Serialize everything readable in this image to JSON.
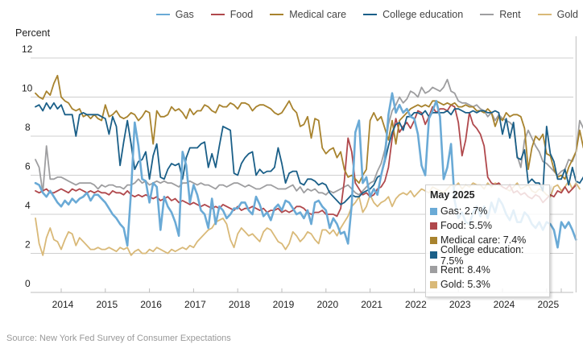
{
  "chart_data": {
    "type": "line",
    "title": "",
    "ylabel": "Percent",
    "xlabel": "",
    "ylim": [
      0,
      12
    ],
    "yticks": [
      0,
      2,
      4,
      6,
      8,
      10,
      12
    ],
    "ytick_labels": [
      "0",
      "2",
      "4",
      "6",
      "8",
      "10",
      "12"
    ],
    "x_start": "2013-06",
    "x_end": "2025-05",
    "x_frequency": "monthly",
    "xticks": [
      "2014",
      "2015",
      "2016",
      "2017",
      "2018",
      "2019",
      "2020",
      "2021",
      "2022",
      "2023",
      "2024",
      "2025"
    ],
    "grid": "horizontal",
    "legend_position": "top-right",
    "series": [
      {
        "name": "Gas",
        "color": "#6aaad6",
        "values": [
          5.6,
          5.5,
          5.1,
          4.9,
          5.2,
          4.9,
          4.6,
          4.4,
          4.7,
          4.5,
          4.8,
          4.6,
          4.8,
          4.9,
          5.1,
          4.7,
          5.0,
          5.0,
          4.8,
          4.6,
          4.3,
          4.0,
          3.8,
          3.5,
          3.3,
          2.4,
          5.2,
          8.7,
          7.5,
          5.8,
          5.7,
          4.6,
          5.6,
          5.4,
          3.2,
          4.9,
          4.4,
          4.1,
          3.6,
          2.9,
          7.2,
          6.5,
          4.6,
          5.5,
          5.0,
          4.2,
          4.0,
          3.3,
          4.8,
          3.5,
          4.4,
          4.2,
          3.8,
          4.0,
          4.3,
          4.3,
          4.6,
          4.6,
          4.2,
          4.0,
          4.9,
          4.5,
          3.9,
          4.1,
          3.7,
          4.3,
          4.5,
          4.2,
          4.7,
          4.6,
          4.3,
          4.0,
          4.1,
          3.8,
          4.2,
          3.5,
          4.6,
          4.7,
          4.4,
          4.2,
          3.3,
          3.8,
          3.5,
          3.0,
          3.1,
          2.5,
          4.5,
          8.2,
          8.8,
          5.6,
          5.9,
          4.9,
          5.3,
          5.0,
          6.0,
          6.8,
          9.1,
          10.2,
          9.2,
          9.6,
          9.2,
          9.4,
          9.0,
          8.9,
          8.1,
          6.5,
          6.0,
          8.9,
          9.3,
          9.8,
          9.0,
          5.8,
          6.4,
          7.6,
          4.7,
          3.8,
          4.1,
          3.6,
          3.5,
          4.1,
          4.4,
          3.9,
          4.4,
          3.8,
          4.6,
          4.1,
          4.8,
          4.5,
          4.0,
          3.7,
          4.2,
          3.6,
          3.6,
          4.1,
          3.9,
          3.5,
          3.3,
          3.6,
          3.2,
          3.6,
          3.5,
          3.2,
          2.3,
          3.6,
          3.3,
          3.6,
          3.2,
          2.7
        ]
      },
      {
        "name": "Food",
        "color": "#b0484c",
        "values": [
          5.2,
          5.1,
          5.2,
          5.3,
          5.1,
          5.1,
          5.2,
          5.3,
          5.2,
          5.1,
          5.3,
          5.2,
          5.3,
          5.2,
          5.1,
          5.2,
          5.1,
          5.2,
          5.1,
          5.1,
          5.0,
          5.2,
          5.1,
          5.1,
          5.0,
          5.2,
          5.0,
          4.9,
          5.0,
          4.9,
          5.0,
          4.9,
          4.8,
          4.9,
          4.7,
          4.8,
          4.9,
          4.7,
          4.8,
          4.6,
          4.7,
          4.6,
          4.5,
          4.6,
          4.5,
          4.4,
          4.5,
          4.4,
          4.3,
          4.4,
          4.3,
          4.5,
          4.4,
          4.3,
          4.2,
          4.4,
          4.2,
          4.3,
          4.3,
          4.4,
          4.3,
          4.2,
          4.3,
          4.1,
          4.2,
          4.2,
          4.3,
          4.1,
          4.2,
          4.1,
          4.2,
          4.4,
          4.4,
          4.3,
          4.1,
          4.0,
          4.1,
          4.1,
          4.2,
          4.0,
          4.0,
          4.0,
          3.9,
          4.3,
          5.7,
          7.9,
          7.2,
          5.6,
          5.3,
          5.0,
          5.1,
          4.9,
          5.0,
          5.3,
          5.4,
          5.7,
          6.4,
          7.9,
          8.9,
          8.2,
          8.5,
          8.7,
          8.4,
          8.8,
          9.3,
          9.2,
          8.6,
          9.0,
          9.5,
          9.2,
          9.4,
          9.4,
          9.3,
          9.6,
          9.5,
          8.7,
          7.0,
          7.8,
          9.2,
          8.6,
          8.4,
          8.1,
          7.5,
          5.9,
          5.6,
          5.5,
          5.6,
          5.4,
          5.3,
          5.5,
          5.1,
          5.2,
          5.0,
          5.1,
          4.9,
          4.8,
          5.0,
          4.9,
          4.6,
          4.8,
          5.0,
          4.9,
          5.2,
          5.1,
          5.4,
          5.1,
          5.3,
          5.5
        ]
      },
      {
        "name": "Medical care",
        "color": "#a8832e",
        "values": [
          10.2,
          10.0,
          9.9,
          10.3,
          10.1,
          10.7,
          11.1,
          10.0,
          9.8,
          9.7,
          9.4,
          9.3,
          9.4,
          9.0,
          9.1,
          8.9,
          9.1,
          8.9,
          8.8,
          9.6,
          9.0,
          9.1,
          9.3,
          9.0,
          8.9,
          9.0,
          9.2,
          9.1,
          8.8,
          9.0,
          9.3,
          9.2,
          7.6,
          9.3,
          9.0,
          9.0,
          9.1,
          9.5,
          9.3,
          9.4,
          9.2,
          8.9,
          9.4,
          9.1,
          9.3,
          9.3,
          9.6,
          9.5,
          9.3,
          9.2,
          9.6,
          9.5,
          9.5,
          9.7,
          9.6,
          9.4,
          9.7,
          9.7,
          9.6,
          9.3,
          9.5,
          9.6,
          9.6,
          9.5,
          9.4,
          9.2,
          9.1,
          9.2,
          9.5,
          9.8,
          9.4,
          9.2,
          8.5,
          8.6,
          9.0,
          7.9,
          8.9,
          8.8,
          7.4,
          7.1,
          7.3,
          7.4,
          6.9,
          7.2,
          6.3,
          5.9,
          6.0,
          5.8,
          5.6,
          6.0,
          6.3,
          8.8,
          9.2,
          8.8,
          9.0,
          8.4,
          7.8,
          8.8,
          7.6,
          8.8,
          9.0,
          9.2,
          9.4,
          9.5,
          9.6,
          9.5,
          9.6,
          9.5,
          9.8,
          9.8,
          9.7,
          9.6,
          9.7,
          9.6,
          9.7,
          9.5,
          9.5,
          9.6,
          9.5,
          9.5,
          9.3,
          9.3,
          9.2,
          9.4,
          9.2,
          8.5,
          9.0,
          8.8,
          9.2,
          9.0,
          9.1,
          9.1,
          9.0,
          8.4,
          6.3,
          7.4,
          8.0,
          7.8,
          8.1,
          7.1,
          7.0,
          6.3,
          5.9,
          6.0,
          5.8,
          6.4,
          6.8,
          7.2,
          8.3,
          7.4
        ]
      },
      {
        "name": "College education",
        "color": "#1a5f88",
        "values": [
          9.5,
          9.6,
          9.3,
          9.7,
          9.4,
          9.7,
          9.4,
          9.6,
          9.1,
          9.1,
          9.1,
          8.0,
          9.1,
          9.2,
          9.1,
          9.1,
          9.1,
          9.1,
          9.0,
          8.9,
          8.1,
          9.0,
          8.5,
          6.5,
          7.7,
          8.8,
          7.6,
          6.3,
          6.7,
          6.8,
          7.2,
          5.8,
          7.0,
          7.6,
          5.9,
          5.8,
          6.3,
          6.6,
          6.5,
          6.6,
          5.8,
          6.9,
          7.4,
          7.4,
          7.4,
          7.6,
          7.7,
          6.4,
          7.1,
          6.4,
          7.5,
          8.5,
          8.4,
          8.3,
          6.1,
          6.0,
          6.6,
          6.9,
          7.1,
          7.2,
          6.0,
          6.3,
          6.1,
          6.2,
          6.2,
          6.4,
          7.4,
          6.6,
          5.6,
          6.1,
          6.2,
          6.2,
          5.6,
          5.5,
          5.8,
          5.8,
          5.7,
          5.5,
          5.6,
          5.5,
          5.1,
          4.9,
          4.7,
          4.5,
          4.6,
          4.8,
          5.0,
          4.9,
          4.9,
          5.1,
          5.2,
          5.3,
          5.5,
          5.9,
          6.0,
          6.7,
          7.5,
          8.2,
          8.6,
          8.7,
          8.3,
          9.0,
          9.0,
          9.2,
          9.2,
          9.1,
          9.3,
          9.0,
          9.2,
          9.2,
          9.2,
          9.2,
          9.3,
          9.1,
          9.4,
          9.4,
          9.3,
          9.2,
          9.2,
          9.3,
          9.2,
          9.3,
          9.3,
          9.2,
          9.2,
          9.3,
          9.2,
          8.1,
          8.9,
          7.9,
          8.7,
          6.9,
          6.8,
          7.3,
          5.6,
          5.8,
          5.6,
          5.6,
          5.2,
          8.5,
          7.1,
          6.7,
          5.8,
          5.8,
          6.3,
          5.5,
          6.4,
          5.7,
          5.6,
          5.9,
          6.4,
          7.2,
          9.0,
          7.5
        ]
      },
      {
        "name": "Rent",
        "color": "#9e9ea0",
        "values": [
          6.8,
          6.4,
          5.1,
          7.5,
          5.8,
          5.8,
          5.9,
          5.9,
          5.8,
          5.7,
          5.6,
          5.5,
          5.6,
          5.6,
          5.6,
          5.6,
          5.5,
          5.3,
          5.5,
          5.4,
          5.5,
          5.5,
          5.4,
          5.4,
          5.3,
          5.5,
          5.5,
          5.6,
          5.8,
          5.6,
          5.7,
          5.5,
          5.6,
          5.7,
          5.6,
          5.7,
          5.6,
          5.6,
          5.5,
          5.4,
          5.6,
          5.6,
          5.7,
          5.6,
          5.5,
          5.6,
          5.5,
          5.5,
          5.4,
          5.3,
          5.5,
          5.5,
          5.4,
          5.5,
          5.6,
          5.6,
          5.5,
          5.4,
          5.5,
          5.4,
          5.3,
          5.3,
          5.4,
          5.5,
          5.5,
          5.4,
          5.3,
          5.3,
          5.3,
          5.4,
          5.5,
          5.2,
          5.4,
          5.1,
          5.3,
          5.2,
          5.3,
          5.1,
          5.1,
          5.0,
          5.2,
          5.1,
          5.2,
          5.3,
          5.4,
          5.5,
          5.3,
          5.1,
          5.0,
          5.2,
          5.4,
          5.6,
          5.7,
          6.2,
          6.6,
          7.3,
          8.6,
          9.3,
          9.6,
          10.0,
          9.7,
          9.9,
          10.3,
          10.2,
          10.0,
          10.5,
          10.2,
          10.3,
          10.5,
          10.4,
          10.3,
          10.5,
          10.9,
          10.3,
          10.2,
          9.8,
          9.7,
          9.7,
          9.6,
          9.5,
          9.6,
          9.4,
          9.3,
          9.0,
          9.2,
          8.8,
          9.1,
          8.9,
          8.8,
          8.7,
          8.5,
          7.0,
          6.4,
          7.8,
          8.3,
          7.9,
          7.5,
          7.2,
          6.7,
          6.6,
          6.4,
          6.2,
          6.0,
          6.2,
          6.3,
          6.8,
          6.7,
          7.2,
          8.8,
          8.4
        ]
      },
      {
        "name": "Gold",
        "color": "#d9b978",
        "values": [
          3.8,
          2.5,
          1.9,
          2.8,
          3.3,
          2.7,
          2.6,
          2.2,
          2.7,
          3.1,
          3.0,
          2.4,
          2.8,
          2.6,
          2.4,
          2.2,
          2.2,
          2.3,
          2.2,
          2.2,
          2.3,
          2.2,
          2.1,
          2.3,
          2.2,
          2.3,
          1.9,
          2.1,
          2.2,
          2.0,
          2.0,
          2.2,
          2.1,
          2.3,
          2.2,
          2.1,
          2.0,
          2.2,
          2.1,
          2.2,
          2.3,
          2.2,
          2.4,
          2.3,
          2.6,
          2.8,
          3.0,
          3.2,
          3.3,
          3.6,
          3.7,
          3.8,
          3.5,
          2.7,
          2.3,
          3.0,
          3.3,
          3.1,
          2.9,
          3.0,
          2.8,
          2.6,
          3.1,
          3.3,
          3.2,
          2.9,
          2.6,
          2.5,
          2.2,
          2.5,
          3.1,
          2.9,
          2.6,
          2.8,
          3.1,
          3.0,
          2.7,
          2.5,
          3.2,
          3.2,
          3.0,
          3.2,
          2.9,
          3.3,
          3.6,
          3.9,
          4.4,
          4.6,
          4.9,
          4.1,
          4.4,
          5.0,
          4.6,
          4.4,
          4.6,
          4.7,
          4.9,
          4.4,
          4.8,
          5.0,
          5.1,
          5.0,
          5.2,
          4.9,
          5.1,
          5.3,
          5.2,
          5.1,
          5.4,
          5.3,
          5.2,
          5.1,
          5.3,
          5.5,
          5.4,
          5.6,
          5.3,
          5.5,
          5.4,
          5.6,
          5.5,
          5.5,
          5.3,
          5.6,
          5.4,
          5.6,
          5.5,
          5.4,
          5.3,
          5.2,
          5.4,
          5.6,
          5.3,
          5.4,
          5.5,
          5.2,
          5.1,
          5.3,
          5.2,
          5.0,
          4.9,
          5.4,
          5.5,
          5.2,
          5.4,
          5.7,
          5.3,
          5.6,
          5.3
        ]
      }
    ],
    "tooltip": {
      "title": "May 2025",
      "rows": [
        {
          "label": "Gas: 2.7%",
          "color": "#6aaad6"
        },
        {
          "label": "Food: 5.5%",
          "color": "#b0484c"
        },
        {
          "label": "Medical care: 7.4%",
          "color": "#a8832e"
        },
        {
          "label": "College education: 7.5%",
          "color": "#1a5f88"
        },
        {
          "label": "Rent: 8.4%",
          "color": "#9e9ea0"
        },
        {
          "label": "Gold: 5.3%",
          "color": "#d9b978"
        }
      ]
    },
    "source": "Source: New York Fed Survey of Consumer Expectations"
  }
}
